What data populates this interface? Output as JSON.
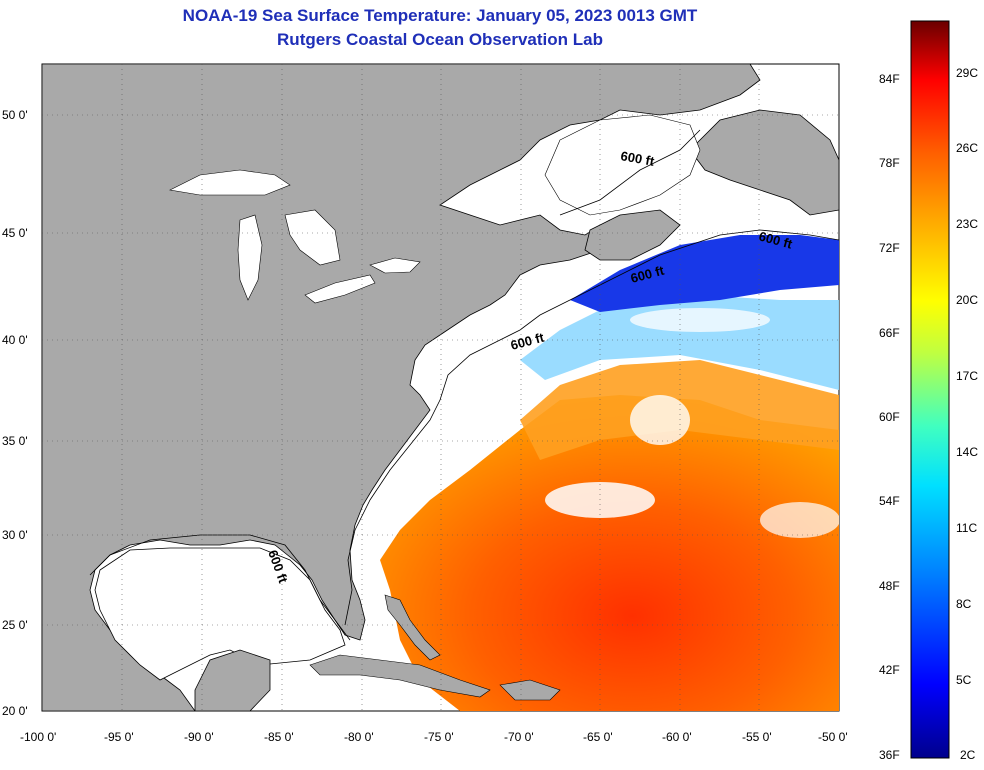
{
  "header": {
    "title": "NOAA-19 Sea Surface Temperature:  January 05, 2023 0013 GMT",
    "subtitle": "Rutgers Coastal Ocean Observation Lab"
  },
  "map": {
    "lon_labels": [
      "-100 0'",
      "-95 0'",
      "-90 0'",
      "-85 0'",
      "-80 0'",
      "-75 0'",
      "-70 0'",
      "-65 0'",
      "-60 0'",
      "-55 0'",
      "-50 0'"
    ],
    "lat_labels": [
      "50 0'",
      "45 0'",
      "40 0'",
      "35 0'",
      "30 0'",
      "25 0'",
      "20 0'"
    ],
    "contour_labels": [
      "600 ft",
      "600 ft",
      "600 ft",
      "600 ft",
      "600 ft"
    ],
    "land_color": "#a9a9a9",
    "shelf_color": "#ffffff"
  },
  "colorbar": {
    "fahrenheit": [
      "84F",
      "78F",
      "72F",
      "66F",
      "60F",
      "54F",
      "48F",
      "42F",
      "36F"
    ],
    "celsius": [
      "29C",
      "26C",
      "23C",
      "20C",
      "17C",
      "14C",
      "11C",
      "8C",
      "5C",
      "2C"
    ],
    "colors": [
      "#00008c",
      "#0000ff",
      "#0080ff",
      "#00e0ff",
      "#40ffc0",
      "#c0ff40",
      "#ffff00",
      "#ffb000",
      "#ff6000",
      "#ff0000",
      "#a00000",
      "#6a0000"
    ]
  }
}
